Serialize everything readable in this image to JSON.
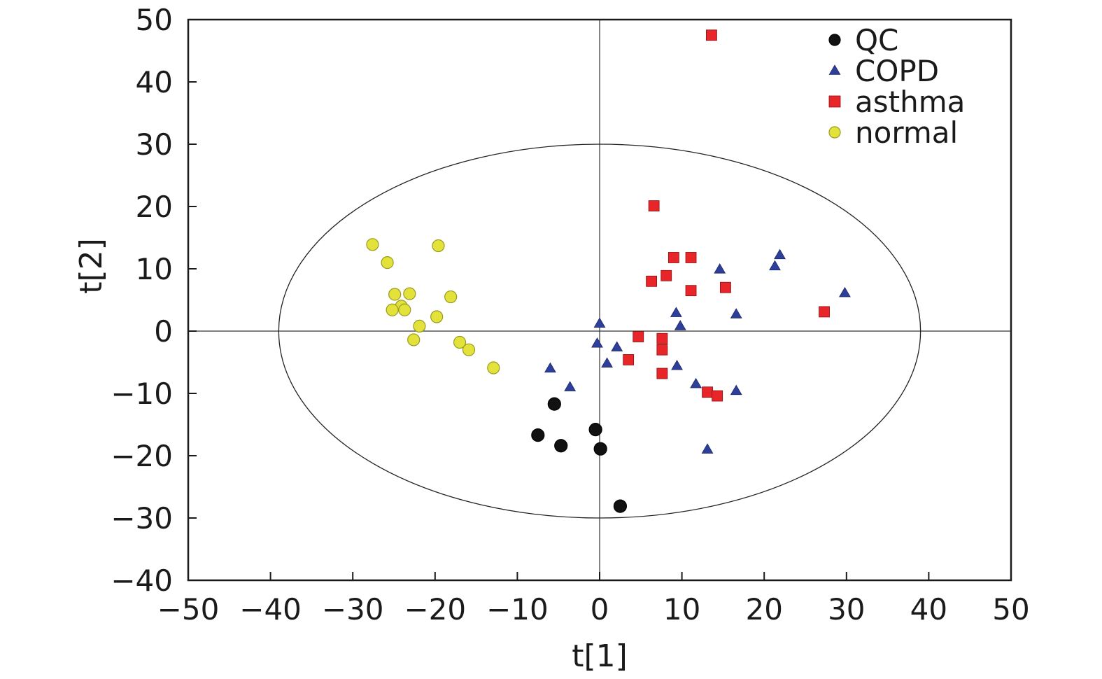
{
  "chart_data": {
    "type": "scatter",
    "xlabel": "t[1]",
    "ylabel": "t[2]",
    "xlim": [
      -50,
      50
    ],
    "ylim": [
      -40,
      50
    ],
    "xticks": [
      -50,
      -40,
      -30,
      -20,
      -10,
      0,
      10,
      20,
      30,
      40,
      50
    ],
    "yticks": [
      -40,
      -30,
      -20,
      -10,
      0,
      10,
      20,
      30,
      40,
      50
    ],
    "grid": false,
    "reference_lines": {
      "x": 0,
      "y": 0
    },
    "confidence_ellipse": {
      "center": [
        0,
        0
      ],
      "semi_axis_x": 39,
      "semi_axis_y": 30
    },
    "legend_position": "top-right",
    "series": [
      {
        "name": "QC",
        "marker": "circle",
        "color": "#111111",
        "points": [
          [
            -5.5,
            -11.7
          ],
          [
            -7.5,
            -16.7
          ],
          [
            -4.7,
            -18.4
          ],
          [
            -0.5,
            -15.8
          ],
          [
            0.1,
            -18.9
          ],
          [
            2.5,
            -28.1
          ]
        ]
      },
      {
        "name": "COPD",
        "marker": "triangle",
        "color": "#2E3F9B",
        "points": [
          [
            -6.0,
            -6.0
          ],
          [
            -3.6,
            -9.0
          ],
          [
            -0.3,
            -2.0
          ],
          [
            0.0,
            1.2
          ],
          [
            0.9,
            -5.2
          ],
          [
            2.1,
            -2.6
          ],
          [
            9.3,
            2.9
          ],
          [
            9.8,
            0.8
          ],
          [
            9.4,
            -5.6
          ],
          [
            11.7,
            -8.5
          ],
          [
            13.1,
            -19.0
          ],
          [
            14.6,
            9.9
          ],
          [
            16.6,
            2.7
          ],
          [
            16.6,
            -9.6
          ],
          [
            21.3,
            10.4
          ],
          [
            21.9,
            12.2
          ],
          [
            29.8,
            6.1
          ]
        ]
      },
      {
        "name": "asthma",
        "marker": "square",
        "color": "#E8262A",
        "points": [
          [
            13.6,
            47.5
          ],
          [
            6.6,
            20.1
          ],
          [
            6.3,
            8.0
          ],
          [
            8.1,
            8.9
          ],
          [
            9.0,
            11.8
          ],
          [
            11.1,
            11.8
          ],
          [
            11.1,
            6.5
          ],
          [
            15.3,
            7.0
          ],
          [
            27.3,
            3.1
          ],
          [
            4.7,
            -0.9
          ],
          [
            3.5,
            -4.6
          ],
          [
            7.6,
            -1.2
          ],
          [
            7.6,
            -3.0
          ],
          [
            7.6,
            -6.8
          ],
          [
            13.1,
            -9.8
          ],
          [
            14.3,
            -10.4
          ]
        ]
      },
      {
        "name": "normal",
        "marker": "circle",
        "color": "#E2E23A",
        "points": [
          [
            -27.6,
            13.9
          ],
          [
            -25.8,
            11.0
          ],
          [
            -19.6,
            13.7
          ],
          [
            -24.9,
            5.9
          ],
          [
            -23.1,
            6.0
          ],
          [
            -24.1,
            4.0
          ],
          [
            -23.7,
            3.4
          ],
          [
            -25.2,
            3.4
          ],
          [
            -18.1,
            5.5
          ],
          [
            -19.8,
            2.3
          ],
          [
            -21.9,
            0.8
          ],
          [
            -22.6,
            -1.4
          ],
          [
            -17.0,
            -1.8
          ],
          [
            -15.9,
            -3.0
          ],
          [
            -12.9,
            -5.9
          ]
        ]
      }
    ]
  }
}
